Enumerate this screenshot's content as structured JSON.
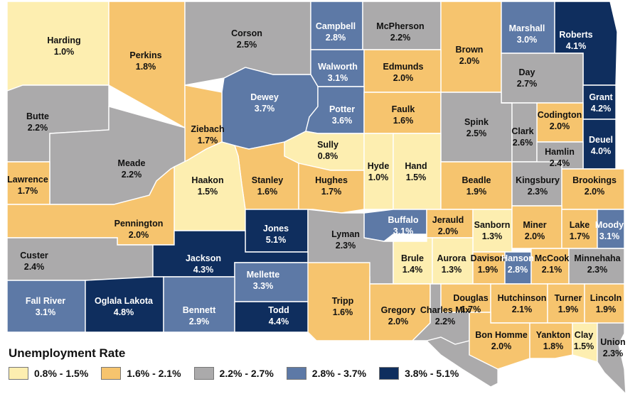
{
  "legend": {
    "title": "Unemployment Rate",
    "bins": [
      {
        "label": "0.8% - 1.5%",
        "color": "#fdeeb0"
      },
      {
        "label": "1.6% - 2.1%",
        "color": "#f6c46e"
      },
      {
        "label": "2.2% - 2.7%",
        "color": "#abaaab"
      },
      {
        "label": "2.8% - 3.7%",
        "color": "#5d79a6"
      },
      {
        "label": "3.8% - 5.1%",
        "color": "#0f2e5e"
      }
    ]
  },
  "counties": [
    {
      "name": "Harding",
      "rate": "1.0%",
      "bin": 0
    },
    {
      "name": "Perkins",
      "rate": "1.8%",
      "bin": 1
    },
    {
      "name": "Corson",
      "rate": "2.5%",
      "bin": 2
    },
    {
      "name": "Campbell",
      "rate": "2.8%",
      "bin": 3
    },
    {
      "name": "McPherson",
      "rate": "2.2%",
      "bin": 2
    },
    {
      "name": "Brown",
      "rate": "2.0%",
      "bin": 1
    },
    {
      "name": "Marshall",
      "rate": "3.0%",
      "bin": 3
    },
    {
      "name": "Roberts",
      "rate": "4.1%",
      "bin": 4
    },
    {
      "name": "Walworth",
      "rate": "3.1%",
      "bin": 3
    },
    {
      "name": "Edmunds",
      "rate": "2.0%",
      "bin": 1
    },
    {
      "name": "Day",
      "rate": "2.7%",
      "bin": 2
    },
    {
      "name": "Butte",
      "rate": "2.2%",
      "bin": 2
    },
    {
      "name": "Dewey",
      "rate": "3.7%",
      "bin": 3
    },
    {
      "name": "Potter",
      "rate": "3.6%",
      "bin": 3
    },
    {
      "name": "Faulk",
      "rate": "1.6%",
      "bin": 1
    },
    {
      "name": "Spink",
      "rate": "2.5%",
      "bin": 2
    },
    {
      "name": "Grant",
      "rate": "4.2%",
      "bin": 4
    },
    {
      "name": "Ziebach",
      "rate": "1.7%",
      "bin": 1
    },
    {
      "name": "Codington",
      "rate": "2.0%",
      "bin": 1
    },
    {
      "name": "Clark",
      "rate": "2.6%",
      "bin": 2
    },
    {
      "name": "Deuel",
      "rate": "4.0%",
      "bin": 4
    },
    {
      "name": "Meade",
      "rate": "2.2%",
      "bin": 2
    },
    {
      "name": "Sully",
      "rate": "0.8%",
      "bin": 0
    },
    {
      "name": "Hyde",
      "rate": "1.0%",
      "bin": 0
    },
    {
      "name": "Hand",
      "rate": "1.5%",
      "bin": 0
    },
    {
      "name": "Hamlin",
      "rate": "2.4%",
      "bin": 2
    },
    {
      "name": "Lawrence",
      "rate": "1.7%",
      "bin": 1
    },
    {
      "name": "Stanley",
      "rate": "1.6%",
      "bin": 1
    },
    {
      "name": "Hughes",
      "rate": "1.7%",
      "bin": 1
    },
    {
      "name": "Beadle",
      "rate": "1.9%",
      "bin": 1
    },
    {
      "name": "Kingsbury",
      "rate": "2.3%",
      "bin": 2
    },
    {
      "name": "Brookings",
      "rate": "2.0%",
      "bin": 1
    },
    {
      "name": "Haakon",
      "rate": "1.5%",
      "bin": 0
    },
    {
      "name": "Pennington",
      "rate": "2.0%",
      "bin": 1
    },
    {
      "name": "Jones",
      "rate": "5.1%",
      "bin": 4
    },
    {
      "name": "Buffalo",
      "rate": "3.1%",
      "bin": 3
    },
    {
      "name": "Jerauld",
      "rate": "2.0%",
      "bin": 1
    },
    {
      "name": "Sanborn",
      "rate": "1.3%",
      "bin": 0
    },
    {
      "name": "Miner",
      "rate": "2.0%",
      "bin": 1
    },
    {
      "name": "Lake",
      "rate": "1.7%",
      "bin": 1
    },
    {
      "name": "Moody",
      "rate": "3.1%",
      "bin": 3
    },
    {
      "name": "Lyman",
      "rate": "2.3%",
      "bin": 2
    },
    {
      "name": "Custer",
      "rate": "2.4%",
      "bin": 2
    },
    {
      "name": "Jackson",
      "rate": "4.3%",
      "bin": 4
    },
    {
      "name": "Mellette",
      "rate": "3.3%",
      "bin": 3
    },
    {
      "name": "Brule",
      "rate": "1.4%",
      "bin": 0
    },
    {
      "name": "Aurora",
      "rate": "1.3%",
      "bin": 0
    },
    {
      "name": "Davison",
      "rate": "1.9%",
      "bin": 1
    },
    {
      "name": "Hanson",
      "rate": "2.8%",
      "bin": 3
    },
    {
      "name": "McCook",
      "rate": "2.1%",
      "bin": 1
    },
    {
      "name": "Minnehaha",
      "rate": "2.3%",
      "bin": 2
    },
    {
      "name": "Fall River",
      "rate": "3.1%",
      "bin": 3
    },
    {
      "name": "Oglala Lakota",
      "rate": "4.8%",
      "bin": 4
    },
    {
      "name": "Bennett",
      "rate": "2.9%",
      "bin": 3
    },
    {
      "name": "Todd",
      "rate": "4.4%",
      "bin": 4
    },
    {
      "name": "Tripp",
      "rate": "1.6%",
      "bin": 1
    },
    {
      "name": "Gregory",
      "rate": "2.0%",
      "bin": 1
    },
    {
      "name": "Charles Mix",
      "rate": "2.2%",
      "bin": 2
    },
    {
      "name": "Douglas",
      "rate": "1.7%",
      "bin": 1
    },
    {
      "name": "Hutchinson",
      "rate": "2.1%",
      "bin": 1
    },
    {
      "name": "Turner",
      "rate": "1.9%",
      "bin": 1
    },
    {
      "name": "Lincoln",
      "rate": "1.9%",
      "bin": 1
    },
    {
      "name": "Bon Homme",
      "rate": "2.0%",
      "bin": 1
    },
    {
      "name": "Yankton",
      "rate": "1.8%",
      "bin": 1
    },
    {
      "name": "Clay",
      "rate": "1.5%",
      "bin": 0
    },
    {
      "name": "Union",
      "rate": "2.3%",
      "bin": 2
    }
  ]
}
